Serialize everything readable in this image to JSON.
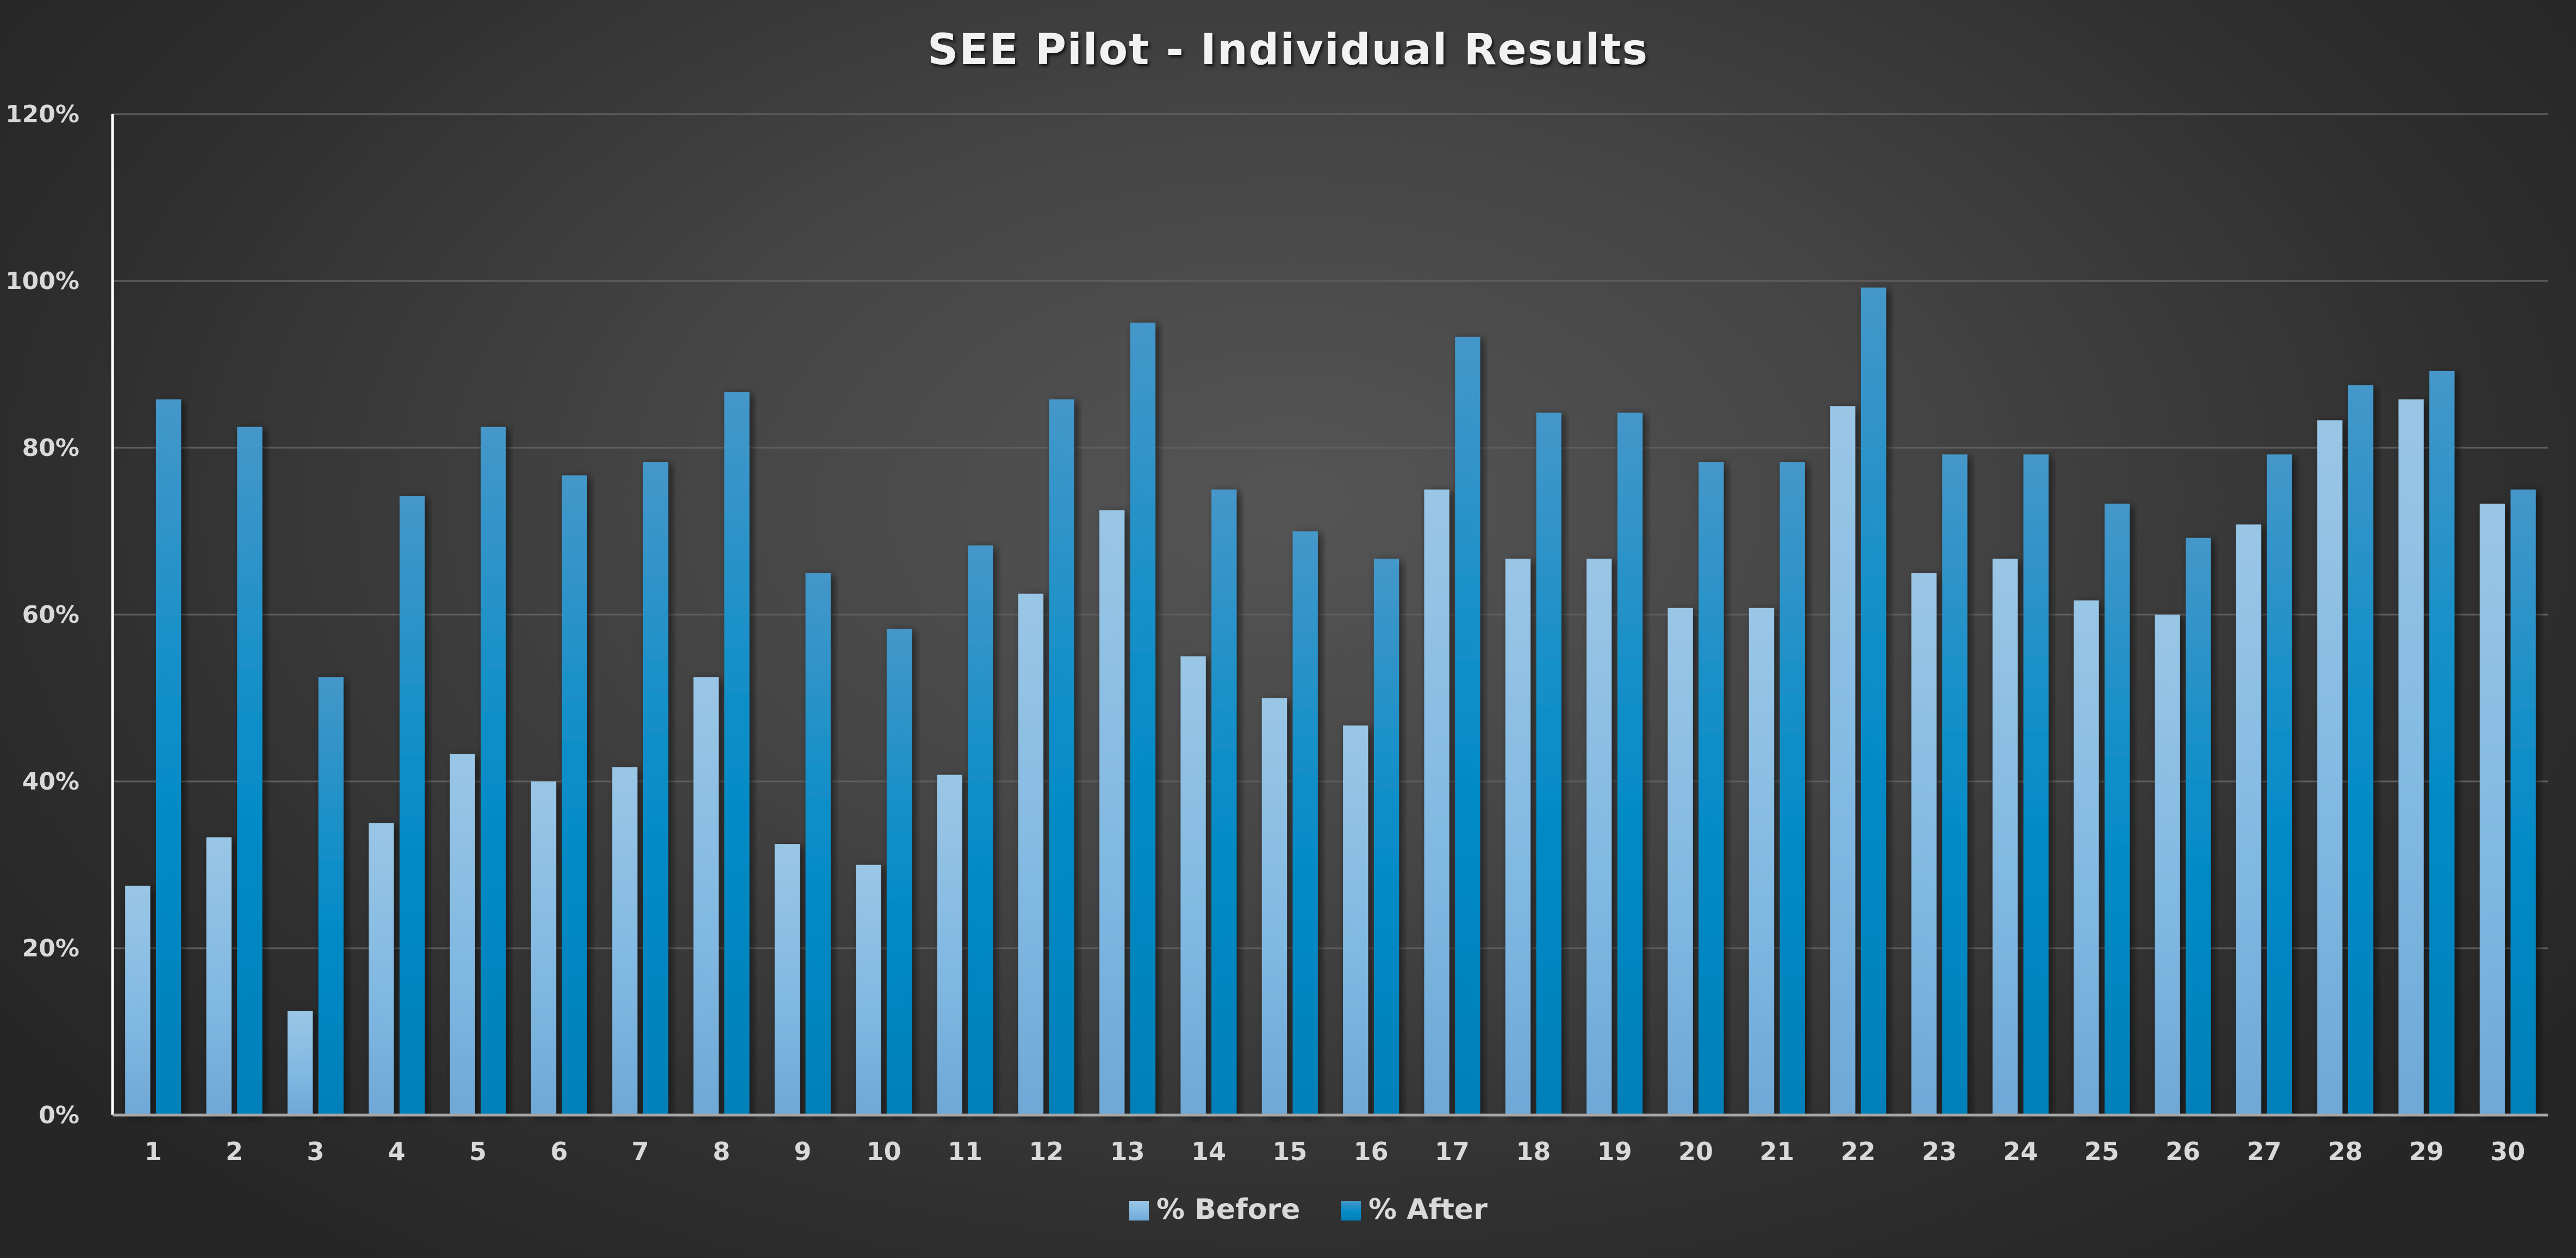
{
  "chart_data": {
    "type": "bar",
    "title": "SEE Pilot - Individual Results",
    "xlabel": "",
    "ylabel": "",
    "ylim": [
      0,
      1.2
    ],
    "yticks": [
      0,
      0.2,
      0.4,
      0.6,
      0.8,
      1.0,
      1.2
    ],
    "ytick_labels": [
      "0%",
      "20%",
      "40%",
      "60%",
      "80%",
      "100%",
      "120%"
    ],
    "grid": true,
    "legend_position": "bottom",
    "categories": [
      "1",
      "2",
      "3",
      "4",
      "5",
      "6",
      "7",
      "8",
      "9",
      "10",
      "11",
      "12",
      "13",
      "14",
      "15",
      "16",
      "17",
      "18",
      "19",
      "20",
      "21",
      "22",
      "23",
      "24",
      "25",
      "26",
      "27",
      "28",
      "29",
      "30"
    ],
    "series": [
      {
        "name": "% Before",
        "color": "#8cbde3",
        "values": [
          0.275,
          0.333,
          0.125,
          0.35,
          0.433,
          0.4,
          0.417,
          0.525,
          0.325,
          0.3,
          0.408,
          0.625,
          0.725,
          0.55,
          0.5,
          0.467,
          0.75,
          0.667,
          0.667,
          0.608,
          0.608,
          0.85,
          0.65,
          0.667,
          0.617,
          0.6,
          0.708,
          0.833,
          0.858,
          0.733
        ]
      },
      {
        "name": "% After",
        "color": "#0a8cc8",
        "values": [
          0.858,
          0.825,
          0.525,
          0.742,
          0.825,
          0.767,
          0.783,
          0.867,
          0.65,
          0.583,
          0.683,
          0.858,
          0.95,
          0.75,
          0.7,
          0.667,
          0.933,
          0.842,
          0.842,
          0.783,
          0.783,
          0.992,
          0.792,
          0.792,
          0.733,
          0.692,
          0.792,
          0.875,
          0.892,
          0.75
        ]
      }
    ]
  }
}
